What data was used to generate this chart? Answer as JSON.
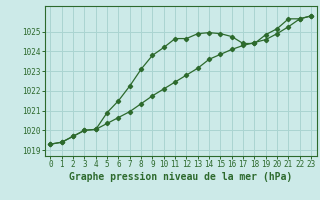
{
  "title": "Graphe pression niveau de la mer (hPa)",
  "bg_color": "#cceae8",
  "grid_color": "#aad4d1",
  "line_color": "#2d6a2d",
  "xlim": [
    -0.5,
    23.5
  ],
  "ylim": [
    1018.7,
    1026.3
  ],
  "yticks": [
    1019,
    1020,
    1021,
    1022,
    1023,
    1024,
    1025
  ],
  "xticks": [
    0,
    1,
    2,
    3,
    4,
    5,
    6,
    7,
    8,
    9,
    10,
    11,
    12,
    13,
    14,
    15,
    16,
    17,
    18,
    19,
    20,
    21,
    22,
    23
  ],
  "series1_x": [
    0,
    1,
    2,
    3,
    4,
    5,
    6,
    7,
    8,
    9,
    10,
    11,
    12,
    13,
    14,
    15,
    16,
    17,
    18,
    19,
    20,
    21,
    22,
    23
  ],
  "series1_y": [
    1019.3,
    1019.4,
    1019.7,
    1020.0,
    1020.05,
    1020.9,
    1021.5,
    1022.25,
    1023.1,
    1023.8,
    1024.2,
    1024.65,
    1024.65,
    1024.9,
    1024.95,
    1024.9,
    1024.75,
    1024.4,
    1024.4,
    1024.85,
    1025.15,
    1025.65,
    1025.65,
    1025.8
  ],
  "series2_x": [
    0,
    1,
    2,
    3,
    4,
    5,
    6,
    7,
    8,
    9,
    10,
    11,
    12,
    13,
    14,
    15,
    16,
    17,
    18,
    19,
    20,
    21,
    22,
    23
  ],
  "series2_y": [
    1019.3,
    1019.4,
    1019.7,
    1020.0,
    1020.05,
    1020.35,
    1020.65,
    1020.95,
    1021.35,
    1021.75,
    1022.1,
    1022.45,
    1022.8,
    1023.15,
    1023.6,
    1023.85,
    1024.1,
    1024.3,
    1024.45,
    1024.6,
    1024.9,
    1025.25,
    1025.65,
    1025.8
  ],
  "tick_fontsize": 5.5,
  "title_fontsize": 7
}
